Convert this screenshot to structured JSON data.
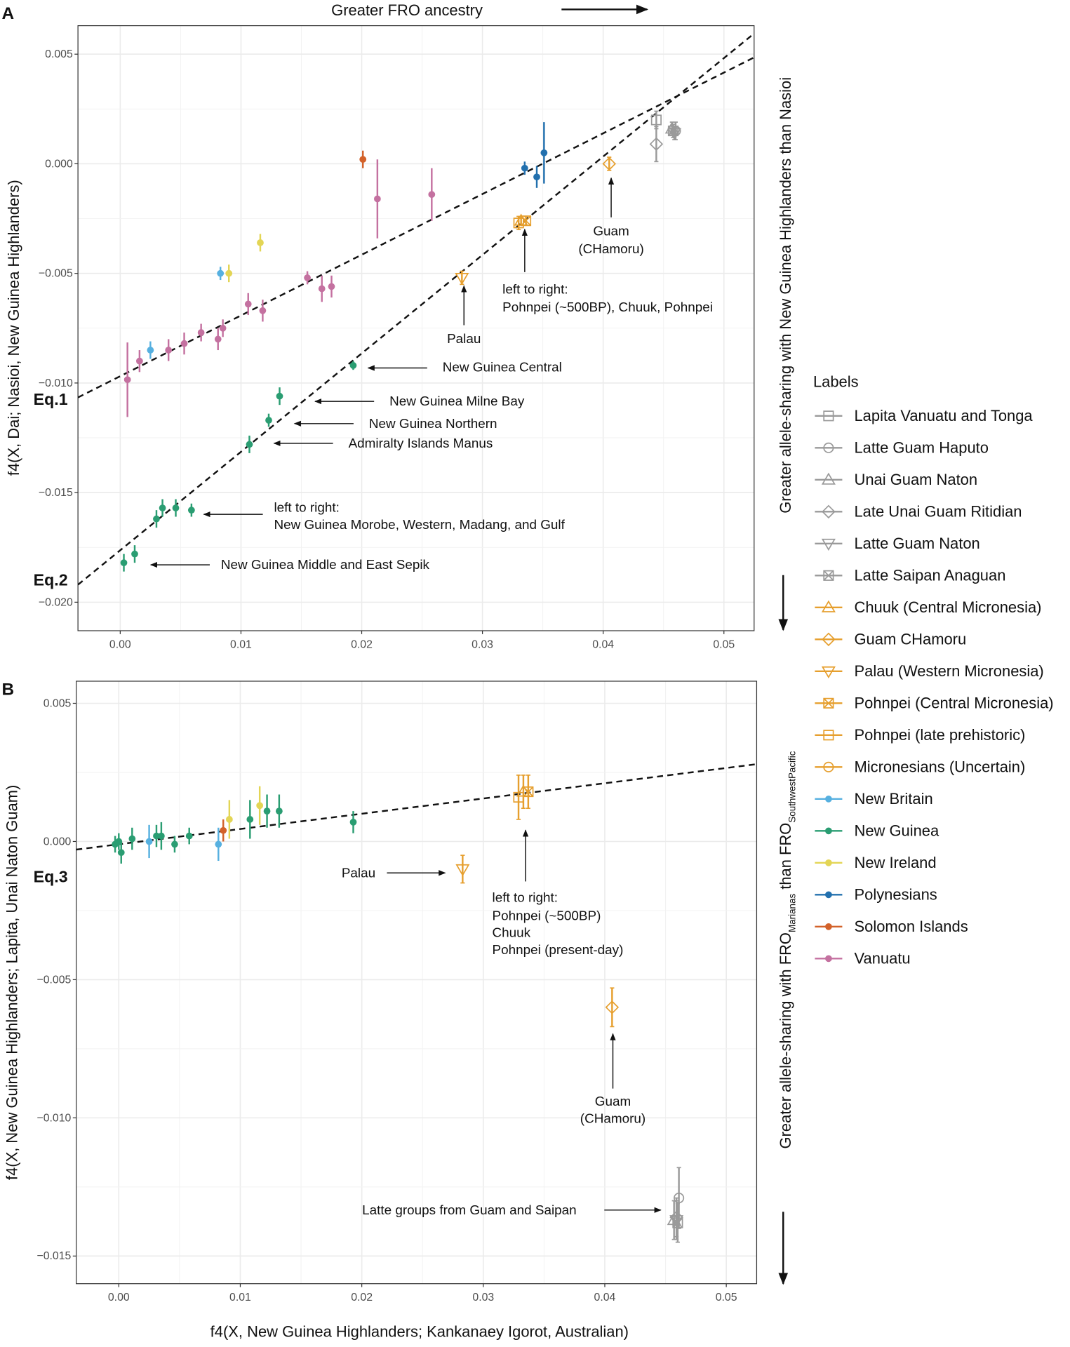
{
  "colors": {
    "grey": "#9a9a9a",
    "orange": "#E69F2E",
    "new_britain": "#56B0E0",
    "new_guinea": "#2A9D72",
    "new_ireland": "#E3D555",
    "polynesians": "#2270AE",
    "solomon": "#D3622A",
    "vanuatu": "#C471A0"
  },
  "legend": {
    "title": "Labels",
    "items": [
      {
        "label": "Lapita Vanuatu and Tonga",
        "shape": "square",
        "color": "grey"
      },
      {
        "label": "Latte Guam Haputo",
        "shape": "circle",
        "color": "grey"
      },
      {
        "label": "Unai Guam Naton",
        "shape": "triangle-up",
        "color": "grey"
      },
      {
        "label": "Late Unai Guam Ritidian",
        "shape": "diamond",
        "color": "grey"
      },
      {
        "label": "Latte Guam Naton",
        "shape": "triangle-down",
        "color": "grey"
      },
      {
        "label": "Latte Saipan Anaguan",
        "shape": "crossbox",
        "color": "grey"
      },
      {
        "label": "Chuuk (Central Micronesia)",
        "shape": "triangle-up",
        "color": "orange"
      },
      {
        "label": "Guam CHamoru",
        "shape": "diamond",
        "color": "orange"
      },
      {
        "label": "Palau (Western Micronesia)",
        "shape": "triangle-down",
        "color": "orange"
      },
      {
        "label": "Pohnpei (Central Micronesia)",
        "shape": "crossbox",
        "color": "orange"
      },
      {
        "label": "Pohnpei (late prehistoric)",
        "shape": "square",
        "color": "orange"
      },
      {
        "label": "Micronesians (Uncertain)",
        "shape": "circle",
        "color": "orange"
      },
      {
        "label": "New Britain",
        "shape": "dot",
        "color": "new_britain"
      },
      {
        "label": "New Guinea",
        "shape": "dot",
        "color": "new_guinea"
      },
      {
        "label": "New Ireland",
        "shape": "dot",
        "color": "new_ireland"
      },
      {
        "label": "Polynesians",
        "shape": "dot",
        "color": "polynesians"
      },
      {
        "label": "Solomon Islands",
        "shape": "dot",
        "color": "solomon"
      },
      {
        "label": "Vanuatu",
        "shape": "dot",
        "color": "vanuatu"
      }
    ]
  },
  "top_label": "Greater FRO ancestry",
  "x_label": "f4(X, New Guinea Highlanders; Kankanaey Igorot, Australian)",
  "chart_data": [
    {
      "panel": "A",
      "type": "scatter",
      "ylabel": "f4(X, Dai; Nasioi, New Guinea Highlanders)",
      "right_label": "Greater allele-sharing with New Guinea Highlanders than Nasioi",
      "xlim": [
        -0.0035,
        0.0525
      ],
      "ylim": [
        -0.0213,
        0.0063
      ],
      "xticks": [
        0.0,
        0.01,
        0.02,
        0.03,
        0.04,
        0.05
      ],
      "xtick_labels": [
        "0.00",
        "0.01",
        "0.02",
        "0.03",
        "0.04",
        "0.05"
      ],
      "yticks": [
        0.005,
        0.0,
        -0.005,
        -0.01,
        -0.015,
        -0.02
      ],
      "ytick_labels": [
        "0.005",
        "0.000",
        "−0.005",
        "−0.010",
        "−0.015",
        "−0.020"
      ],
      "fits": [
        {
          "label": "Eq.1",
          "slope": 0.277,
          "intercept": -0.00969
        },
        {
          "label": "Eq.2",
          "slope": 0.449,
          "intercept": -0.01763
        }
      ],
      "points": [
        {
          "g": "Vanuatu",
          "x": 0.0006,
          "y": -0.00985,
          "e": 0.0017
        },
        {
          "g": "Vanuatu",
          "x": 0.0016,
          "y": -0.009,
          "e": 0.0005
        },
        {
          "g": "Vanuatu",
          "x": 0.004,
          "y": -0.0085,
          "e": 0.0005
        },
        {
          "g": "Vanuatu",
          "x": 0.0053,
          "y": -0.0082,
          "e": 0.0005
        },
        {
          "g": "Vanuatu",
          "x": 0.0067,
          "y": -0.0077,
          "e": 0.0004
        },
        {
          "g": "Vanuatu",
          "x": 0.0081,
          "y": -0.008,
          "e": 0.0005
        },
        {
          "g": "Vanuatu",
          "x": 0.0085,
          "y": -0.0075,
          "e": 0.0004
        },
        {
          "g": "Vanuatu",
          "x": 0.0106,
          "y": -0.0064,
          "e": 0.0005
        },
        {
          "g": "Vanuatu",
          "x": 0.0118,
          "y": -0.0067,
          "e": 0.0005
        },
        {
          "g": "Vanuatu",
          "x": 0.0155,
          "y": -0.0052,
          "e": 0.0003
        },
        {
          "g": "Vanuatu",
          "x": 0.0167,
          "y": -0.0057,
          "e": 0.0006
        },
        {
          "g": "Vanuatu",
          "x": 0.0175,
          "y": -0.0056,
          "e": 0.0005
        },
        {
          "g": "Vanuatu",
          "x": 0.0213,
          "y": -0.0016,
          "e": 0.0018
        },
        {
          "g": "Vanuatu",
          "x": 0.0258,
          "y": -0.0014,
          "e": 0.0012
        },
        {
          "g": "New Britain",
          "x": 0.0025,
          "y": -0.0085,
          "e": 0.0004
        },
        {
          "g": "New Britain",
          "x": 0.0083,
          "y": -0.005,
          "e": 0.0003
        },
        {
          "g": "New Ireland",
          "x": 0.009,
          "y": -0.005,
          "e": 0.0004
        },
        {
          "g": "New Ireland",
          "x": 0.0116,
          "y": -0.0036,
          "e": 0.0004
        },
        {
          "g": "Solomon Islands",
          "x": 0.0201,
          "y": 0.0002,
          "e": 0.0004
        },
        {
          "g": "Polynesians",
          "x": 0.0335,
          "y": -0.0002,
          "e": 0.0003
        },
        {
          "g": "Polynesians",
          "x": 0.0345,
          "y": -0.0006,
          "e": 0.0005
        },
        {
          "g": "Polynesians",
          "x": 0.0351,
          "y": 0.0005,
          "e": 0.0014
        },
        {
          "g": "New Guinea",
          "x": 0.0193,
          "y": -0.0092,
          "e": 0.0002
        },
        {
          "g": "New Guinea",
          "x": 0.0132,
          "y": -0.0106,
          "e": 0.0004
        },
        {
          "g": "New Guinea",
          "x": 0.0123,
          "y": -0.0117,
          "e": 0.0003
        },
        {
          "g": "New Guinea",
          "x": 0.0107,
          "y": -0.0128,
          "e": 0.0004
        },
        {
          "g": "New Guinea",
          "x": 0.003,
          "y": -0.0162,
          "e": 0.0004
        },
        {
          "g": "New Guinea",
          "x": 0.0035,
          "y": -0.0157,
          "e": 0.0004
        },
        {
          "g": "New Guinea",
          "x": 0.0046,
          "y": -0.0157,
          "e": 0.0004
        },
        {
          "g": "New Guinea",
          "x": 0.0059,
          "y": -0.0158,
          "e": 0.0003
        },
        {
          "g": "New Guinea",
          "x": 0.0003,
          "y": -0.0182,
          "e": 0.0004
        },
        {
          "g": "New Guinea",
          "x": 0.0012,
          "y": -0.0178,
          "e": 0.0004
        },
        {
          "g": "Palau (Western Micronesia)",
          "x": 0.0283,
          "y": -0.0052,
          "e": 0.0003
        },
        {
          "g": "Pohnpei (late prehistoric)",
          "x": 0.033,
          "y": -0.0027,
          "e": 0.0003
        },
        {
          "g": "Chuuk (Central Micronesia)",
          "x": 0.0332,
          "y": -0.0026,
          "e": 0.0002
        },
        {
          "g": "Pohnpei (Central Micronesia)",
          "x": 0.0336,
          "y": -0.0026,
          "e": 0.0002
        },
        {
          "g": "Guam CHamoru",
          "x": 0.0405,
          "y": 0.0,
          "e": 0.0003
        },
        {
          "g": "Lapita Vanuatu and Tonga",
          "x": 0.0444,
          "y": 0.002,
          "e": 0.0004
        },
        {
          "g": "Late Unai Guam Ritidian",
          "x": 0.0444,
          "y": 0.0009,
          "e": 0.0008
        },
        {
          "g": "Latte Guam Haputo",
          "x": 0.046,
          "y": 0.0015,
          "e": 0.0004
        },
        {
          "g": "Unai Guam Naton",
          "x": 0.0457,
          "y": 0.0016,
          "e": 0.0003
        },
        {
          "g": "Latte Guam Naton",
          "x": 0.0459,
          "y": 0.0014,
          "e": 0.0003
        },
        {
          "g": "Latte Saipan Anaguan",
          "x": 0.0458,
          "y": 0.0015,
          "e": 0.0003
        }
      ],
      "annotations": [
        [
          "Guam",
          "(CHamoru)"
        ],
        [
          "left to right:",
          "Pohnpei (~500BP), Chuuk, Pohnpei"
        ],
        [
          "Palau"
        ],
        [
          "New Guinea Central"
        ],
        [
          "New Guinea Milne Bay"
        ],
        [
          "New Guinea Northern"
        ],
        [
          "Admiralty Islands Manus"
        ],
        [
          "left to right:",
          "New Guinea Morobe, Western, Madang, and Gulf"
        ],
        [
          "New Guinea Middle and East Sepik"
        ]
      ]
    },
    {
      "panel": "B",
      "type": "scatter",
      "ylabel": "f4(X, New Guinea Highlanders; Lapita, Unai Naton Guam)",
      "right_label": {
        "pre": "Greater allele-sharing with FRO",
        "sub1": "Marianas",
        "mid": " than FRO",
        "sub2": "SouthwestPacific"
      },
      "xlim": [
        -0.0035,
        0.0525
      ],
      "ylim": [
        -0.016,
        0.0058
      ],
      "xticks": [
        0.0,
        0.01,
        0.02,
        0.03,
        0.04,
        0.05
      ],
      "xtick_labels": [
        "0.00",
        "0.01",
        "0.02",
        "0.03",
        "0.04",
        "0.05"
      ],
      "yticks": [
        0.005,
        0.0,
        -0.005,
        -0.01,
        -0.015
      ],
      "ytick_labels": [
        "0.005",
        "0.000",
        "−0.005",
        "−0.010",
        "−0.015"
      ],
      "fits": [
        {
          "label": "Eq.3",
          "slope": 0.0552,
          "intercept": -0.0001
        }
      ],
      "points": [
        {
          "g": "New Guinea",
          "x": -0.0003,
          "y": -0.0001,
          "e": 0.0003
        },
        {
          "g": "New Guinea",
          "x": 0.0,
          "y": 0.0,
          "e": 0.0003
        },
        {
          "g": "New Guinea",
          "x": 0.0002,
          "y": -0.0004,
          "e": 0.0004
        },
        {
          "g": "New Guinea",
          "x": 0.0011,
          "y": 0.0001,
          "e": 0.0004
        },
        {
          "g": "New Guinea",
          "x": 0.0031,
          "y": 0.0002,
          "e": 0.0004
        },
        {
          "g": "New Guinea",
          "x": 0.0035,
          "y": 0.0002,
          "e": 0.0005
        },
        {
          "g": "New Guinea",
          "x": 0.0046,
          "y": -0.0001,
          "e": 0.0003
        },
        {
          "g": "New Guinea",
          "x": 0.0058,
          "y": 0.0002,
          "e": 0.0003
        },
        {
          "g": "New Guinea",
          "x": 0.0108,
          "y": 0.0008,
          "e": 0.0007
        },
        {
          "g": "New Guinea",
          "x": 0.0122,
          "y": 0.0011,
          "e": 0.0006
        },
        {
          "g": "New Guinea",
          "x": 0.0132,
          "y": 0.0011,
          "e": 0.0006
        },
        {
          "g": "New Guinea",
          "x": 0.0193,
          "y": 0.0007,
          "e": 0.0004
        },
        {
          "g": "New Britain",
          "x": 0.0025,
          "y": 0.0,
          "e": 0.0006
        },
        {
          "g": "New Britain",
          "x": 0.0082,
          "y": -0.0001,
          "e": 0.0006
        },
        {
          "g": "Solomon Islands",
          "x": 0.0086,
          "y": 0.0004,
          "e": 0.0004
        },
        {
          "g": "New Ireland",
          "x": 0.0091,
          "y": 0.0008,
          "e": 0.0007
        },
        {
          "g": "New Ireland",
          "x": 0.0116,
          "y": 0.0013,
          "e": 0.0007
        },
        {
          "g": "Palau (Western Micronesia)",
          "x": 0.0283,
          "y": -0.001,
          "e": 0.0005
        },
        {
          "g": "Pohnpei (late prehistoric)",
          "x": 0.0329,
          "y": 0.0016,
          "e": 0.0008
        },
        {
          "g": "Chuuk (Central Micronesia)",
          "x": 0.0333,
          "y": 0.0018,
          "e": 0.0006
        },
        {
          "g": "Pohnpei (Central Micronesia)",
          "x": 0.0337,
          "y": 0.0018,
          "e": 0.0006
        },
        {
          "g": "Guam CHamoru",
          "x": 0.0406,
          "y": -0.006,
          "e": 0.0007
        },
        {
          "g": "Latte Guam Haputo",
          "x": 0.0461,
          "y": -0.0129,
          "e": 0.0011
        },
        {
          "g": "Unai Guam Naton",
          "x": 0.0457,
          "y": -0.0137,
          "e": 0.0007
        },
        {
          "g": "Latte Guam Naton",
          "x": 0.0459,
          "y": -0.0137,
          "e": 0.0007
        },
        {
          "g": "Latte Saipan Anaguan",
          "x": 0.046,
          "y": -0.0138,
          "e": 0.0007
        },
        {
          "g": "Late Unai Guam Ritidian",
          "x": 0.0459,
          "y": -0.0136,
          "e": 0.0007
        }
      ],
      "annotations": [
        [
          "Palau"
        ],
        [
          "left to right:",
          "Pohnpei (~500BP)",
          "Chuuk",
          "Pohnpei (present-day)"
        ],
        [
          "Guam",
          "(CHamoru)"
        ],
        [
          "Latte groups from Guam and Saipan"
        ]
      ]
    }
  ]
}
